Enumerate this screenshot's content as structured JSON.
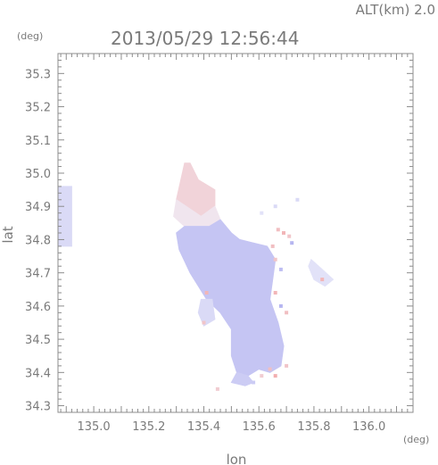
{
  "header": {
    "alt_label": "ALT(km)  2.0",
    "timestamp": "2013/05/29  12:56:44"
  },
  "chart_data": {
    "type": "heatmap",
    "title": "2013/05/29  12:56:44",
    "xlabel": "lon",
    "ylabel": "lat",
    "xunit": "(deg)",
    "yunit": "(deg)",
    "xlim": [
      134.87,
      136.16
    ],
    "ylim": [
      34.28,
      35.36
    ],
    "xticks": [
      135.0,
      135.2,
      135.4,
      135.6,
      135.8,
      136.0
    ],
    "xtick_labels": [
      "135.0",
      "135.2",
      "135.4",
      "135.6",
      "135.8",
      "136.0"
    ],
    "yticks": [
      34.3,
      34.4,
      34.5,
      34.6,
      34.7,
      34.8,
      34.9,
      35.0,
      35.1,
      35.2,
      35.3
    ],
    "ytick_labels": [
      "34.3",
      "34.4",
      "34.5",
      "34.6",
      "34.7",
      "34.8",
      "34.9",
      "35.0",
      "35.1",
      "35.2",
      "35.3"
    ],
    "colors": {
      "negative": "#a8a8ee",
      "mid": "#d0d0f4",
      "positive": "#f2a8a8",
      "axis": "#8c8c8c",
      "text": "#7a7a7a"
    },
    "regions": [
      {
        "name": "west-edge-strip",
        "value": -0.3,
        "points": [
          [
            134.87,
            34.96
          ],
          [
            134.92,
            34.96
          ],
          [
            134.92,
            34.78
          ],
          [
            134.87,
            34.78
          ]
        ]
      },
      {
        "name": "north-tip",
        "value": 0.4,
        "points": [
          [
            135.33,
            35.03
          ],
          [
            135.35,
            35.03
          ],
          [
            135.38,
            34.98
          ],
          [
            135.44,
            34.95
          ],
          [
            135.44,
            34.9
          ],
          [
            135.39,
            34.87
          ],
          [
            135.32,
            34.86
          ],
          [
            135.3,
            34.92
          ]
        ]
      },
      {
        "name": "north-band",
        "value": 0.15,
        "points": [
          [
            135.3,
            34.92
          ],
          [
            135.39,
            34.87
          ],
          [
            135.44,
            34.9
          ],
          [
            135.46,
            34.86
          ],
          [
            135.42,
            34.84
          ],
          [
            135.33,
            34.84
          ],
          [
            135.29,
            34.87
          ]
        ]
      },
      {
        "name": "main-body",
        "value": -0.6,
        "points": [
          [
            135.33,
            34.84
          ],
          [
            135.42,
            34.84
          ],
          [
            135.46,
            34.86
          ],
          [
            135.5,
            34.82
          ],
          [
            135.53,
            34.8
          ],
          [
            135.58,
            34.79
          ],
          [
            135.63,
            34.78
          ],
          [
            135.66,
            34.74
          ],
          [
            135.65,
            34.68
          ],
          [
            135.64,
            34.62
          ],
          [
            135.67,
            34.55
          ],
          [
            135.69,
            34.48
          ],
          [
            135.68,
            34.42
          ],
          [
            135.64,
            34.4
          ],
          [
            135.6,
            34.41
          ],
          [
            135.56,
            34.39
          ],
          [
            135.52,
            34.4
          ],
          [
            135.5,
            34.45
          ],
          [
            135.5,
            34.53
          ],
          [
            135.46,
            34.58
          ],
          [
            135.41,
            34.62
          ],
          [
            135.35,
            34.7
          ],
          [
            135.31,
            34.77
          ],
          [
            135.3,
            34.82
          ]
        ]
      },
      {
        "name": "south-lobe",
        "value": -0.5,
        "points": [
          [
            135.52,
            34.4
          ],
          [
            135.56,
            34.39
          ],
          [
            135.58,
            34.37
          ],
          [
            135.55,
            34.36
          ],
          [
            135.5,
            34.37
          ]
        ]
      },
      {
        "name": "northeast-patch",
        "value": -0.2,
        "points": [
          [
            135.79,
            34.74
          ],
          [
            135.83,
            34.71
          ],
          [
            135.87,
            34.68
          ],
          [
            135.84,
            34.66
          ],
          [
            135.8,
            34.68
          ],
          [
            135.78,
            34.72
          ]
        ]
      },
      {
        "name": "west-small-patch",
        "value": -0.3,
        "points": [
          [
            135.39,
            34.62
          ],
          [
            135.43,
            34.62
          ],
          [
            135.44,
            34.56
          ],
          [
            135.4,
            34.54
          ],
          [
            135.38,
            34.58
          ]
        ]
      }
    ],
    "points": [
      {
        "lon": 135.41,
        "lat": 34.64,
        "value": 0.8
      },
      {
        "lon": 135.67,
        "lat": 34.83,
        "value": 0.7
      },
      {
        "lon": 135.69,
        "lat": 34.82,
        "value": 0.8
      },
      {
        "lon": 135.71,
        "lat": 34.81,
        "value": 0.6
      },
      {
        "lon": 135.65,
        "lat": 34.78,
        "value": 0.7
      },
      {
        "lon": 135.72,
        "lat": 34.79,
        "value": -0.8
      },
      {
        "lon": 135.66,
        "lat": 34.74,
        "value": 0.6
      },
      {
        "lon": 135.68,
        "lat": 34.71,
        "value": -0.7
      },
      {
        "lon": 135.66,
        "lat": 34.64,
        "value": 0.8
      },
      {
        "lon": 135.68,
        "lat": 34.6,
        "value": -0.8
      },
      {
        "lon": 135.7,
        "lat": 34.58,
        "value": 0.7
      },
      {
        "lon": 135.64,
        "lat": 34.41,
        "value": 0.7
      },
      {
        "lon": 135.66,
        "lat": 34.39,
        "value": 0.9
      },
      {
        "lon": 135.61,
        "lat": 34.39,
        "value": 0.5
      },
      {
        "lon": 135.7,
        "lat": 34.42,
        "value": 0.6
      },
      {
        "lon": 135.83,
        "lat": 34.68,
        "value": 0.8
      },
      {
        "lon": 135.45,
        "lat": 34.35,
        "value": 0.5
      },
      {
        "lon": 135.58,
        "lat": 34.37,
        "value": -0.5
      },
      {
        "lon": 135.66,
        "lat": 34.9,
        "value": -0.3
      },
      {
        "lon": 135.74,
        "lat": 34.92,
        "value": -0.3
      },
      {
        "lon": 135.61,
        "lat": 34.88,
        "value": -0.2
      },
      {
        "lon": 135.4,
        "lat": 34.55,
        "value": 0.6
      }
    ]
  }
}
